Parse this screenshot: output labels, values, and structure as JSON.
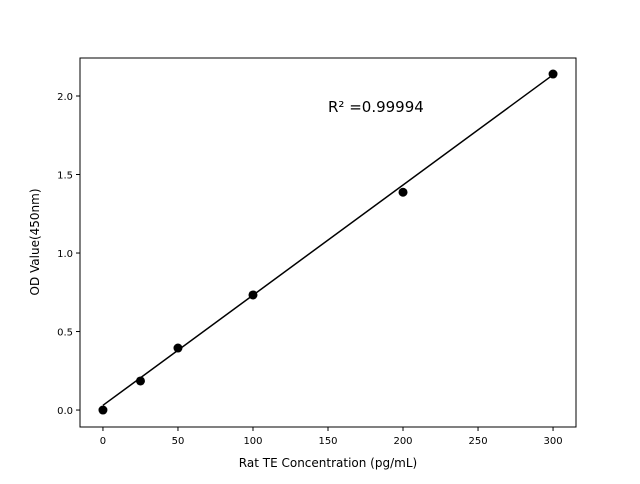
{
  "chart_data": {
    "type": "scatter",
    "title": "",
    "xlabel": "Rat TE Concentration (pg/mL)",
    "ylabel": "OD Value(450nm)",
    "xlim": [
      -15.3,
      315.3
    ],
    "ylim": [
      -0.108,
      2.242
    ],
    "xticks": [
      0,
      50,
      100,
      150,
      200,
      250,
      300
    ],
    "xtick_labels": [
      "0",
      "50",
      "100",
      "150",
      "200",
      "250",
      "300"
    ],
    "yticks": [
      0.0,
      0.5,
      1.0,
      1.5,
      2.0
    ],
    "ytick_labels": [
      "0.0",
      "0.5",
      "1.0",
      "1.5",
      "2.0"
    ],
    "grid": false,
    "series": [
      {
        "kind": "points",
        "x": [
          0,
          25,
          50,
          100,
          200,
          300
        ],
        "y": [
          0.0,
          0.185,
          0.395,
          0.733,
          1.387,
          2.14
        ],
        "color": "#000000"
      },
      {
        "kind": "fit-line",
        "x": [
          0,
          300
        ],
        "y": [
          0.03,
          2.135
        ],
        "color": "#000000"
      }
    ],
    "annotation": {
      "text": "R² =0.99994",
      "x": 150,
      "y": 1.93
    }
  }
}
